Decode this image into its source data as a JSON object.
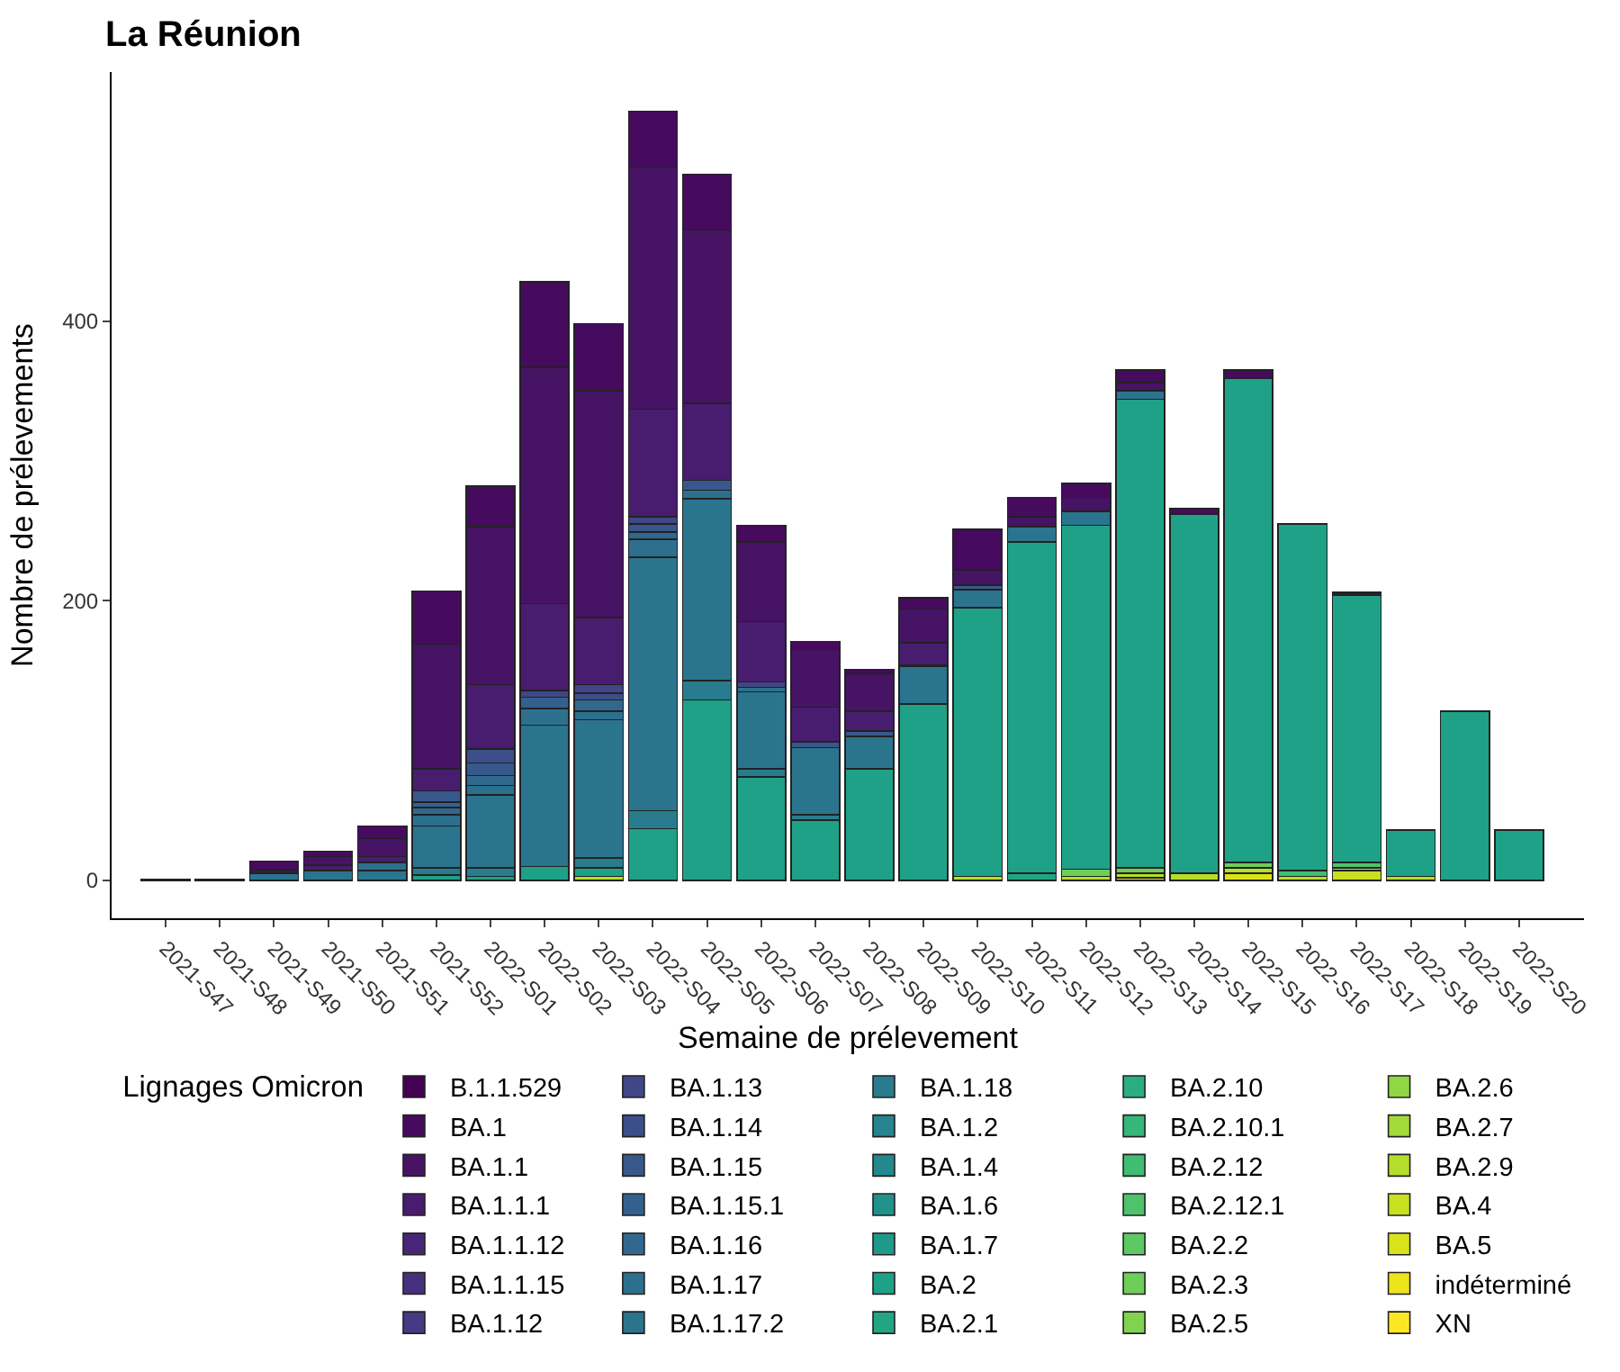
{
  "chart_data": {
    "type": "bar",
    "stacked": true,
    "title": "La Réunion",
    "xlabel": "Semaine de prélevement",
    "ylabel": "Nombre de prélevements",
    "legend_title": "Lignages Omicron",
    "legend": "bottom",
    "grid": false,
    "categories": [
      "2021-S47",
      "2021-S48",
      "2021-S49",
      "2021-S50",
      "2021-S51",
      "2021-S52",
      "2022-S01",
      "2022-S02",
      "2022-S03",
      "2022-S04",
      "2022-S05",
      "2022-S06",
      "2022-S07",
      "2022-S08",
      "2022-S09",
      "2022-S10",
      "2022-S11",
      "2022-S12",
      "2022-S13",
      "2022-S14",
      "2022-S15",
      "2022-S16",
      "2022-S17",
      "2022-S18",
      "2022-S19",
      "2022-S20"
    ],
    "ylim": [
      -27,
      578
    ],
    "yticks": [
      0,
      200,
      400
    ],
    "series": [
      {
        "name": "XN",
        "color": "#fde725",
        "values": [
          null,
          null,
          null,
          null,
          null,
          null,
          null,
          null,
          null,
          null,
          null,
          null,
          null,
          null,
          null,
          null,
          null,
          null,
          null,
          null,
          null,
          null,
          null,
          null,
          null,
          null
        ]
      },
      {
        "name": "indéterminé",
        "color": "#ece51b",
        "values": [
          null,
          null,
          null,
          null,
          null,
          null,
          null,
          null,
          null,
          null,
          null,
          null,
          null,
          null,
          null,
          null,
          null,
          null,
          null,
          null,
          null,
          null,
          null,
          null,
          null,
          null
        ]
      },
      {
        "name": "BA.5",
        "color": "#dae319",
        "values": [
          null,
          null,
          null,
          null,
          null,
          null,
          null,
          null,
          null,
          null,
          null,
          null,
          null,
          null,
          null,
          null,
          null,
          null,
          2,
          null,
          5,
          null,
          null,
          null,
          null,
          null
        ]
      },
      {
        "name": "BA.4",
        "color": "#c8e020",
        "values": [
          null,
          null,
          null,
          null,
          null,
          null,
          null,
          null,
          null,
          null,
          null,
          null,
          null,
          null,
          null,
          null,
          null,
          null,
          null,
          null,
          null,
          null,
          7,
          null,
          null,
          null
        ]
      },
      {
        "name": "BA.2.9",
        "color": "#b5de2b",
        "values": [
          null,
          null,
          null,
          null,
          null,
          null,
          null,
          null,
          3,
          null,
          null,
          null,
          null,
          null,
          null,
          3,
          null,
          3,
          3,
          5,
          4,
          3,
          2,
          3,
          null,
          null
        ]
      },
      {
        "name": "BA.2.7",
        "color": "#a2da37",
        "values": [
          null,
          null,
          null,
          null,
          null,
          null,
          null,
          null,
          null,
          null,
          null,
          null,
          null,
          null,
          null,
          null,
          null,
          null,
          null,
          null,
          null,
          null,
          null,
          null,
          null,
          null
        ]
      },
      {
        "name": "BA.2.6",
        "color": "#90d743",
        "values": [
          null,
          null,
          null,
          null,
          null,
          null,
          null,
          null,
          null,
          null,
          null,
          null,
          null,
          null,
          null,
          null,
          null,
          null,
          null,
          null,
          null,
          null,
          null,
          null,
          null,
          null
        ]
      },
      {
        "name": "BA.2.5",
        "color": "#7fd34e",
        "values": [
          null,
          null,
          null,
          null,
          null,
          null,
          null,
          null,
          null,
          null,
          null,
          null,
          null,
          null,
          null,
          null,
          null,
          null,
          null,
          null,
          null,
          null,
          null,
          null,
          null,
          null
        ]
      },
      {
        "name": "BA.2.3",
        "color": "#6ece58",
        "values": [
          null,
          null,
          null,
          null,
          null,
          null,
          null,
          null,
          null,
          null,
          null,
          null,
          null,
          null,
          null,
          null,
          null,
          5,
          4,
          null,
          4,
          null,
          null,
          null,
          null,
          null
        ]
      },
      {
        "name": "BA.2.2",
        "color": "#5ec962",
        "values": [
          null,
          null,
          null,
          null,
          null,
          null,
          null,
          null,
          null,
          null,
          null,
          null,
          null,
          null,
          null,
          null,
          null,
          null,
          null,
          null,
          null,
          null,
          null,
          null,
          null,
          null
        ]
      },
      {
        "name": "BA.2.12.1",
        "color": "#4ec36b",
        "values": [
          null,
          null,
          null,
          null,
          null,
          null,
          null,
          null,
          null,
          null,
          null,
          null,
          null,
          null,
          null,
          null,
          null,
          null,
          null,
          null,
          null,
          null,
          4,
          null,
          null,
          null
        ]
      },
      {
        "name": "BA.2.12",
        "color": "#40bd72",
        "values": [
          null,
          null,
          null,
          null,
          null,
          null,
          null,
          null,
          null,
          null,
          null,
          null,
          null,
          null,
          null,
          null,
          null,
          null,
          null,
          null,
          null,
          4,
          null,
          null,
          null,
          null
        ]
      },
      {
        "name": "BA.2.10.1",
        "color": "#35b779",
        "values": [
          null,
          null,
          null,
          null,
          null,
          null,
          null,
          null,
          null,
          null,
          null,
          null,
          null,
          null,
          null,
          null,
          null,
          null,
          null,
          null,
          null,
          null,
          null,
          null,
          null,
          null
        ]
      },
      {
        "name": "BA.2.10",
        "color": "#2aae80",
        "values": [
          null,
          null,
          null,
          null,
          null,
          null,
          null,
          null,
          null,
          null,
          null,
          null,
          null,
          null,
          null,
          null,
          null,
          null,
          null,
          null,
          null,
          null,
          null,
          null,
          null,
          null
        ]
      },
      {
        "name": "BA.2.1",
        "color": "#21a685",
        "values": [
          null,
          null,
          null,
          null,
          null,
          null,
          null,
          null,
          null,
          null,
          null,
          null,
          null,
          null,
          null,
          null,
          5,
          null,
          null,
          null,
          null,
          null,
          null,
          null,
          null,
          null
        ]
      },
      {
        "name": "BA.2",
        "color": "#1fa188",
        "values": [
          null,
          null,
          null,
          null,
          null,
          4,
          3,
          10,
          6,
          37,
          129,
          74,
          43,
          80,
          126,
          192,
          237,
          246,
          335,
          257,
          346,
          248,
          191,
          33,
          121,
          36
        ]
      },
      {
        "name": "BA.1.7",
        "color": "#1f998a",
        "values": [
          null,
          null,
          null,
          null,
          null,
          null,
          null,
          null,
          null,
          null,
          null,
          null,
          null,
          null,
          null,
          null,
          null,
          null,
          null,
          null,
          null,
          null,
          null,
          null,
          null,
          null
        ]
      },
      {
        "name": "BA.1.6",
        "color": "#21918c",
        "values": [
          null,
          null,
          null,
          null,
          null,
          null,
          null,
          null,
          null,
          null,
          null,
          null,
          null,
          null,
          null,
          null,
          null,
          null,
          null,
          null,
          null,
          null,
          null,
          null,
          null,
          null
        ]
      },
      {
        "name": "BA.1.4",
        "color": "#23898e",
        "values": [
          null,
          null,
          null,
          null,
          null,
          null,
          null,
          null,
          null,
          null,
          null,
          null,
          null,
          null,
          null,
          null,
          null,
          null,
          null,
          null,
          null,
          null,
          null,
          null,
          null,
          null
        ]
      },
      {
        "name": "BA.1.2",
        "color": "#25848e",
        "values": [
          null,
          null,
          null,
          null,
          null,
          null,
          null,
          null,
          null,
          null,
          null,
          null,
          null,
          null,
          null,
          null,
          null,
          null,
          null,
          null,
          null,
          null,
          null,
          null,
          null,
          null
        ]
      },
      {
        "name": "BA.1.18",
        "color": "#287c8e",
        "values": [
          null,
          null,
          null,
          null,
          null,
          5,
          6,
          null,
          7,
          13,
          14,
          6,
          4,
          null,
          null,
          null,
          null,
          null,
          null,
          null,
          null,
          null,
          null,
          null,
          null,
          null
        ]
      },
      {
        "name": "BA.1.17.2",
        "color": "#2b748e",
        "values": [
          null,
          null,
          5,
          7,
          7,
          30,
          52,
          101,
          99,
          181,
          130,
          55,
          48,
          23,
          27,
          13,
          11,
          10,
          6,
          null,
          null,
          null,
          null,
          null,
          null,
          null
        ]
      },
      {
        "name": "BA.1.17",
        "color": "#2d708e",
        "values": [
          null,
          null,
          null,
          null,
          6,
          8,
          7,
          12,
          6,
          13,
          6,
          3,
          null,
          null,
          null,
          null,
          null,
          null,
          null,
          null,
          null,
          null,
          null,
          null,
          null,
          null
        ]
      },
      {
        "name": "BA.1.16",
        "color": "#31688e",
        "values": [
          null,
          null,
          null,
          null,
          null,
          5,
          7,
          null,
          8,
          5,
          null,
          null,
          null,
          null,
          null,
          null,
          null,
          null,
          null,
          null,
          null,
          null,
          null,
          null,
          null,
          null
        ]
      },
      {
        "name": "BA.1.15.1",
        "color": "#34608d",
        "values": [
          null,
          null,
          null,
          null,
          null,
          4,
          null,
          8,
          null,
          null,
          null,
          null,
          null,
          null,
          null,
          null,
          null,
          null,
          null,
          null,
          null,
          null,
          null,
          null,
          null,
          null
        ]
      },
      {
        "name": "BA.1.15",
        "color": "#38588c",
        "values": [
          null,
          null,
          null,
          null,
          null,
          8,
          9,
          null,
          null,
          6,
          7,
          null,
          4,
          4,
          1,
          3,
          null,
          null,
          null,
          null,
          null,
          null,
          null,
          null,
          null,
          null
        ]
      },
      {
        "name": "BA.1.14",
        "color": "#3c4f8a",
        "values": [
          null,
          null,
          null,
          null,
          null,
          null,
          10,
          null,
          5,
          null,
          null,
          null,
          null,
          null,
          null,
          null,
          null,
          null,
          null,
          null,
          null,
          null,
          null,
          null,
          null,
          null
        ]
      },
      {
        "name": "BA.1.13",
        "color": "#404688",
        "values": [
          null,
          null,
          null,
          null,
          null,
          null,
          null,
          5,
          6,
          5,
          null,
          4,
          null,
          null,
          null,
          null,
          null,
          null,
          null,
          null,
          null,
          null,
          null,
          null,
          null,
          null
        ]
      },
      {
        "name": "BA.1.12",
        "color": "#443b84",
        "values": [
          null,
          null,
          null,
          null,
          null,
          null,
          null,
          null,
          null,
          null,
          null,
          null,
          null,
          null,
          null,
          null,
          null,
          null,
          null,
          null,
          null,
          null,
          null,
          null,
          null,
          null
        ]
      },
      {
        "name": "BA.1.1.15",
        "color": "#46307e",
        "values": [
          null,
          null,
          null,
          null,
          null,
          null,
          null,
          null,
          null,
          null,
          null,
          null,
          null,
          null,
          null,
          null,
          null,
          null,
          null,
          null,
          null,
          null,
          null,
          null,
          null,
          null
        ]
      },
      {
        "name": "BA.1.1.12",
        "color": "#482576",
        "values": [
          null,
          null,
          null,
          null,
          null,
          null,
          null,
          null,
          null,
          null,
          null,
          null,
          null,
          null,
          null,
          null,
          null,
          null,
          null,
          null,
          null,
          null,
          null,
          null,
          null,
          null
        ]
      },
      {
        "name": "BA.1.1.1",
        "color": "#481c6e",
        "values": [
          null,
          null,
          null,
          4,
          4,
          16,
          46,
          62,
          48,
          77,
          55,
          43,
          25,
          14,
          16,
          null,
          null,
          null,
          null,
          null,
          null,
          null,
          null,
          null,
          null,
          null
        ]
      },
      {
        "name": "BA.1.1",
        "color": "#471365",
        "values": [
          null,
          null,
          2,
          6,
          13,
          89,
          113,
          169,
          162,
          173,
          124,
          57,
          41,
          27,
          24,
          11,
          7,
          10,
          6,
          null,
          null,
          null,
          null,
          null,
          null,
          null
        ]
      },
      {
        "name": "BA.1",
        "color": "#460b5e",
        "values": [
          null,
          null,
          7,
          4,
          9,
          38,
          29,
          61,
          48,
          40,
          40,
          12,
          6,
          3,
          8,
          29,
          14,
          10,
          9,
          4,
          6,
          null,
          2,
          null,
          null,
          null
        ]
      },
      {
        "name": "B.1.1.529",
        "color": "#440154",
        "values": [
          1,
          1,
          null,
          null,
          null,
          null,
          null,
          null,
          null,
          null,
          null,
          null,
          null,
          null,
          null,
          null,
          null,
          null,
          null,
          null,
          null,
          null,
          null,
          null,
          null,
          null
        ]
      }
    ]
  }
}
